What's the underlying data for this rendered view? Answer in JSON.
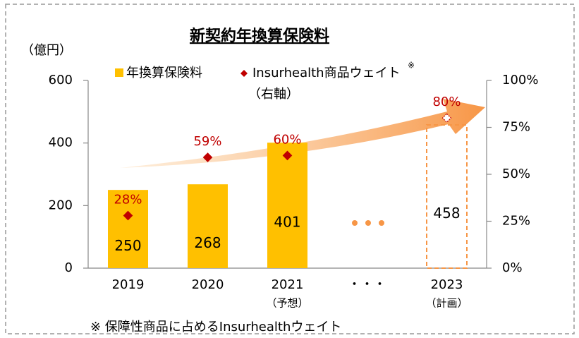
{
  "chart_data": {
    "type": "bar",
    "title": "新契約年換算保険料",
    "y_unit_label": "（億円）",
    "categories": [
      "2019",
      "2020",
      "2021",
      "・・・",
      "2023"
    ],
    "category_notes": [
      null,
      null,
      "（予想）",
      null,
      "（計画）"
    ],
    "series": [
      {
        "name": "年換算保険料",
        "color": "#ffc000",
        "values": [
          250,
          268,
          401,
          null,
          458
        ],
        "bar_styles": [
          "solid",
          "solid",
          "solid",
          null,
          "dashed"
        ],
        "dashed_color": "#f79646"
      },
      {
        "name": "Insurhealth商品ウェイト",
        "color": "#c00000",
        "axis": "y2",
        "values": [
          28,
          59,
          60,
          null,
          80
        ],
        "value_labels": [
          "28%",
          "59%",
          "60%",
          null,
          "80%"
        ]
      }
    ],
    "legend_note": "※",
    "legend_axis_note": "（右軸）",
    "footnote": "※ 保障性商品に占めるInsurhealthウェイト",
    "ylim": [
      0,
      600
    ],
    "yticks": [
      0,
      200,
      400,
      600
    ],
    "y2lim": [
      0,
      100
    ],
    "y2ticks": [
      {
        "value": 0,
        "label": "0%"
      },
      {
        "value": 25,
        "label": "25%"
      },
      {
        "value": 50,
        "label": "50%"
      },
      {
        "value": 75,
        "label": "75%"
      },
      {
        "value": 100,
        "label": "100%"
      }
    ]
  }
}
